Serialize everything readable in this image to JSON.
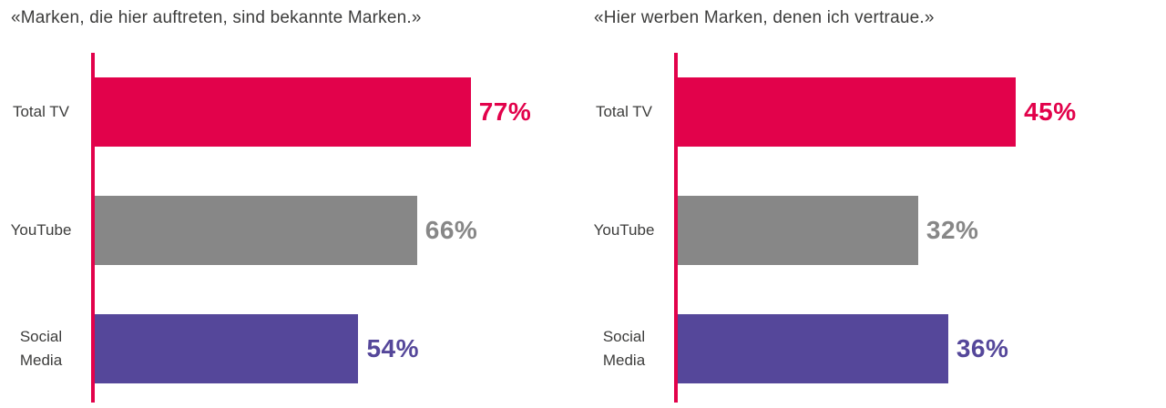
{
  "page": {
    "background": "#ffffff",
    "text_color": "#3C3C3B"
  },
  "colors": {
    "red": "#E2024B",
    "gray": "#878787",
    "purple": "#55479A",
    "axis": "#E2024B",
    "title_text": "#3C3C3B"
  },
  "chart_data": [
    {
      "type": "bar",
      "orientation": "horizontal",
      "title": "«Marken, die hier auftreten, sind bekannte Marken.»",
      "categories": [
        "Total TV",
        "YouTube",
        "Social Media"
      ],
      "values": [
        77,
        66,
        54
      ],
      "value_labels": [
        "77%",
        "66%",
        "54%"
      ],
      "bar_colors": [
        "#E2024B",
        "#878787",
        "#55479A"
      ],
      "axis_color": "#E2024B",
      "xlim": [
        0,
        100
      ],
      "grid": false,
      "legend": null
    },
    {
      "type": "bar",
      "orientation": "horizontal",
      "title": "«Hier werben Marken, denen ich vertraue.»",
      "categories": [
        "Total TV",
        "YouTube",
        "Social Media"
      ],
      "values": [
        45,
        32,
        36
      ],
      "value_labels": [
        "45%",
        "32%",
        "36%"
      ],
      "bar_colors": [
        "#E2024B",
        "#878787",
        "#55479A"
      ],
      "axis_color": "#E2024B",
      "xlim": [
        0,
        65
      ],
      "grid": false,
      "legend": null
    }
  ]
}
